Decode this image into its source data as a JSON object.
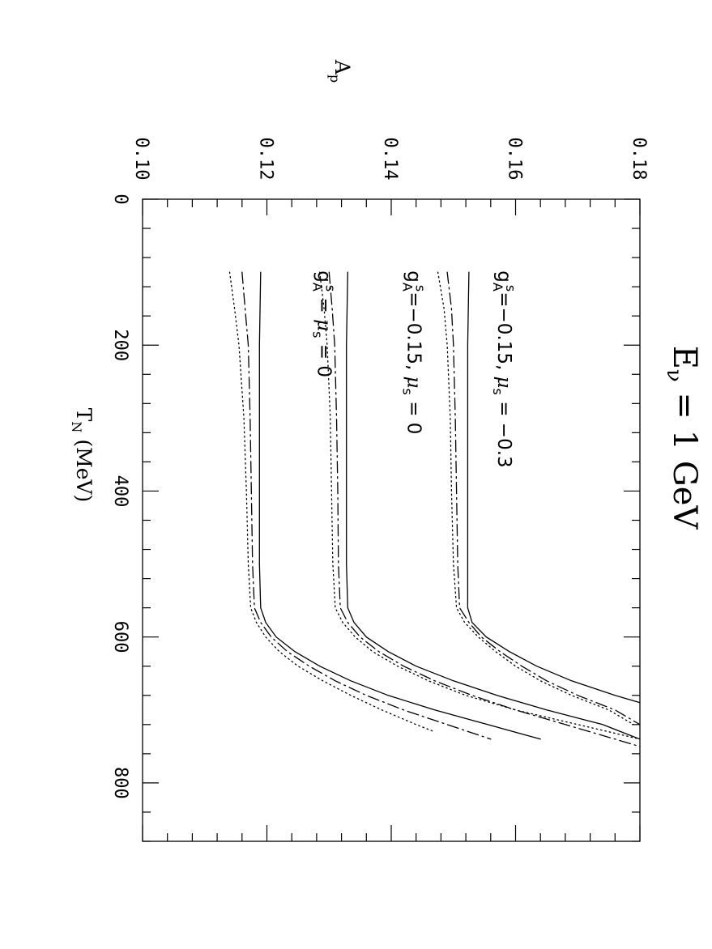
{
  "chart_data": {
    "type": "line",
    "title_parts": [
      "E",
      "ν",
      " = 1 GeV"
    ],
    "xlabel_parts": [
      "T",
      "N",
      " (MeV)"
    ],
    "ylabel_parts": [
      "A",
      "p"
    ],
    "xlim": [
      0,
      880
    ],
    "ylim": [
      0.1,
      0.18
    ],
    "x_ticks": [
      "0",
      "200",
      "400",
      "600",
      "800"
    ],
    "y_ticks": [
      "0.10",
      "0.12",
      "0.14",
      "0.16",
      "0.18"
    ],
    "x_minor_step": 40,
    "y_minor_step": 0.004,
    "annotations": [
      {
        "g": "g",
        "gsub": "A",
        "gsup": "s",
        "rest": "=−0.15, ",
        "mu": "μ",
        "musub": "s",
        "val": " = −0.3",
        "x": 98,
        "y": 0.1572
      },
      {
        "g": "g",
        "gsub": "A",
        "gsup": "s",
        "rest": "=−0.15, ",
        "mu": "μ",
        "musub": "s",
        "val": " = 0",
        "x": 98,
        "y": 0.1427
      },
      {
        "g": "g",
        "gsub": "A",
        "gsup": "s",
        "rest": " = ",
        "mu": "μ",
        "musub": "s",
        "val": " = 0",
        "x": 98,
        "y": 0.1282
      }
    ],
    "series": [
      {
        "style": "solid",
        "points": [
          [
            100,
            0.1525
          ],
          [
            200,
            0.1523
          ],
          [
            300,
            0.1523
          ],
          [
            400,
            0.1523
          ],
          [
            500,
            0.1523
          ],
          [
            540,
            0.1523
          ],
          [
            560,
            0.1523
          ],
          [
            580,
            0.153
          ],
          [
            600,
            0.1553
          ],
          [
            620,
            0.159
          ],
          [
            640,
            0.1634
          ],
          [
            660,
            0.169
          ],
          [
            680,
            0.176
          ],
          [
            690,
            0.18
          ]
        ]
      },
      {
        "style": "dashdot",
        "points": [
          [
            100,
            0.149
          ],
          [
            150,
            0.1497
          ],
          [
            200,
            0.15
          ],
          [
            300,
            0.1503
          ],
          [
            400,
            0.1505
          ],
          [
            500,
            0.1507
          ],
          [
            560,
            0.151
          ],
          [
            580,
            0.1525
          ],
          [
            600,
            0.1545
          ],
          [
            620,
            0.1575
          ],
          [
            640,
            0.161
          ],
          [
            660,
            0.165
          ],
          [
            680,
            0.17
          ],
          [
            700,
            0.176
          ],
          [
            720,
            0.18
          ]
        ]
      },
      {
        "style": "dotted",
        "points": [
          [
            100,
            0.1475
          ],
          [
            150,
            0.1485
          ],
          [
            200,
            0.149
          ],
          [
            300,
            0.1495
          ],
          [
            400,
            0.1497
          ],
          [
            500,
            0.15
          ],
          [
            560,
            0.1505
          ],
          [
            580,
            0.1518
          ],
          [
            600,
            0.154
          ],
          [
            620,
            0.1568
          ],
          [
            640,
            0.16
          ],
          [
            660,
            0.164
          ],
          [
            680,
            0.169
          ],
          [
            700,
            0.175
          ],
          [
            720,
            0.179
          ]
        ]
      },
      {
        "style": "solid",
        "points": [
          [
            100,
            0.133
          ],
          [
            200,
            0.1328
          ],
          [
            300,
            0.1328
          ],
          [
            400,
            0.1328
          ],
          [
            500,
            0.1328
          ],
          [
            560,
            0.133
          ],
          [
            580,
            0.134
          ],
          [
            600,
            0.136
          ],
          [
            620,
            0.1395
          ],
          [
            640,
            0.144
          ],
          [
            660,
            0.15
          ],
          [
            680,
            0.157
          ],
          [
            700,
            0.165
          ],
          [
            720,
            0.174
          ],
          [
            740,
            0.18
          ]
        ]
      },
      {
        "style": "dashdot",
        "points": [
          [
            100,
            0.13
          ],
          [
            150,
            0.1305
          ],
          [
            200,
            0.1309
          ],
          [
            300,
            0.1312
          ],
          [
            400,
            0.1314
          ],
          [
            500,
            0.1315
          ],
          [
            560,
            0.1318
          ],
          [
            580,
            0.133
          ],
          [
            600,
            0.135
          ],
          [
            620,
            0.138
          ],
          [
            640,
            0.142
          ],
          [
            660,
            0.147
          ],
          [
            680,
            0.153
          ],
          [
            700,
            0.16
          ],
          [
            720,
            0.168
          ],
          [
            740,
            0.176
          ],
          [
            750,
            0.18
          ]
        ]
      },
      {
        "style": "dotted",
        "points": [
          [
            100,
            0.1285
          ],
          [
            150,
            0.1292
          ],
          [
            200,
            0.1297
          ],
          [
            300,
            0.1302
          ],
          [
            400,
            0.1304
          ],
          [
            500,
            0.1306
          ],
          [
            560,
            0.131
          ],
          [
            580,
            0.1322
          ],
          [
            600,
            0.1342
          ],
          [
            620,
            0.137
          ],
          [
            640,
            0.141
          ],
          [
            660,
            0.146
          ],
          [
            680,
            0.152
          ],
          [
            700,
            0.16
          ],
          [
            720,
            0.17
          ],
          [
            740,
            0.18
          ]
        ]
      },
      {
        "style": "solid",
        "points": [
          [
            100,
            0.119
          ],
          [
            200,
            0.1188
          ],
          [
            300,
            0.1188
          ],
          [
            400,
            0.1188
          ],
          [
            500,
            0.1188
          ],
          [
            560,
            0.119
          ],
          [
            580,
            0.1198
          ],
          [
            600,
            0.1215
          ],
          [
            620,
            0.1245
          ],
          [
            640,
            0.1285
          ],
          [
            660,
            0.1335
          ],
          [
            680,
            0.1395
          ],
          [
            700,
            0.147
          ],
          [
            720,
            0.1555
          ],
          [
            740,
            0.164
          ]
        ]
      },
      {
        "style": "dashdot",
        "points": [
          [
            100,
            0.116
          ],
          [
            150,
            0.1165
          ],
          [
            200,
            0.117
          ],
          [
            300,
            0.1173
          ],
          [
            400,
            0.1175
          ],
          [
            500,
            0.1177
          ],
          [
            560,
            0.118
          ],
          [
            580,
            0.119
          ],
          [
            600,
            0.1207
          ],
          [
            620,
            0.1233
          ],
          [
            640,
            0.1268
          ],
          [
            660,
            0.131
          ],
          [
            680,
            0.136
          ],
          [
            700,
            0.142
          ],
          [
            720,
            0.149
          ],
          [
            740,
            0.156
          ]
        ]
      },
      {
        "style": "dotted",
        "points": [
          [
            100,
            0.114
          ],
          [
            150,
            0.1148
          ],
          [
            200,
            0.1155
          ],
          [
            300,
            0.1163
          ],
          [
            400,
            0.1167
          ],
          [
            500,
            0.117
          ],
          [
            560,
            0.1174
          ],
          [
            580,
            0.1183
          ],
          [
            600,
            0.1198
          ],
          [
            620,
            0.122
          ],
          [
            640,
            0.125
          ],
          [
            660,
            0.129
          ],
          [
            680,
            0.1335
          ],
          [
            700,
            0.1385
          ],
          [
            720,
            0.144
          ],
          [
            730,
            0.147
          ]
        ]
      }
    ]
  }
}
